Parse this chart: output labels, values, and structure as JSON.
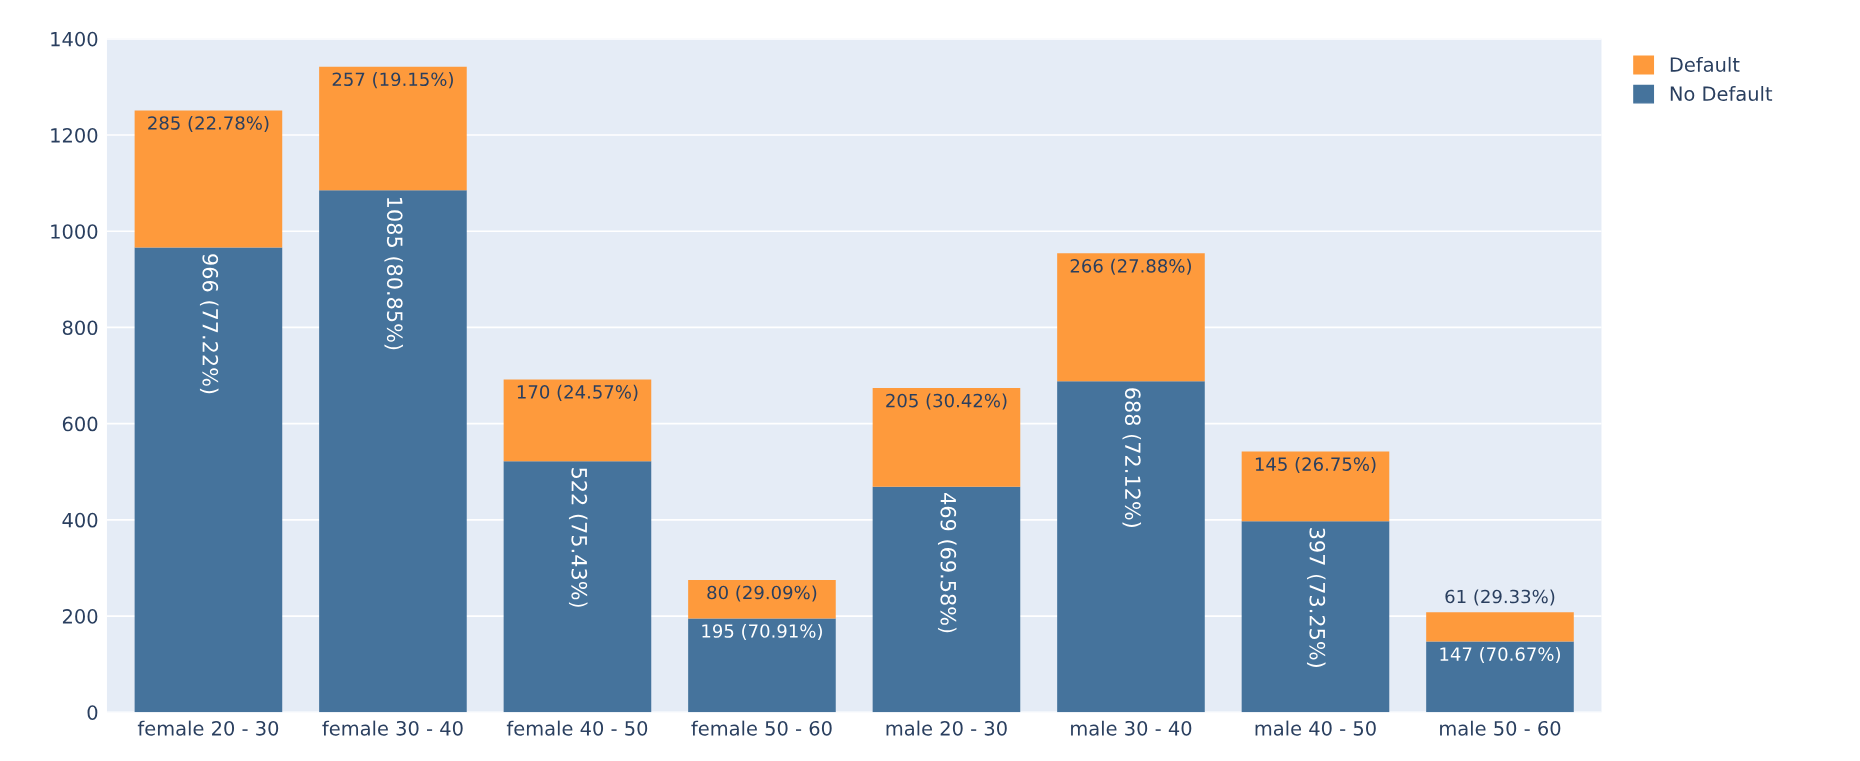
{
  "chart_data": {
    "type": "bar",
    "stacked": true,
    "categories": [
      "female 20 - 30",
      "female 30 - 40",
      "female 40 - 50",
      "female 50 - 60",
      "male 20 - 30",
      "male 30 - 40",
      "male 40 - 50",
      "male 50 - 60"
    ],
    "series": [
      {
        "name": "No Default",
        "color": "#45739c",
        "values": [
          966,
          1085,
          522,
          195,
          469,
          688,
          397,
          147
        ],
        "value_labels": [
          "966 (77.22%)",
          "1085 (80.85%)",
          "522 (75.43%)",
          "195 (70.91%)",
          "469 (69.58%)",
          "688 (72.12%)",
          "397 (73.25%)",
          "147 (70.67%)"
        ]
      },
      {
        "name": "Default",
        "color": "#fe9a3c",
        "values": [
          285,
          257,
          170,
          80,
          205,
          266,
          145,
          61
        ],
        "value_labels": [
          "285 (22.78%)",
          "257 (19.15%)",
          "170 (24.57%)",
          "80 (29.09%)",
          "205 (30.42%)",
          "266 (27.88%)",
          "145 (26.75%)",
          "61 (29.33%)"
        ]
      }
    ],
    "ylim": [
      0,
      1400
    ],
    "yticks": [
      0,
      200,
      400,
      600,
      800,
      1000,
      1200,
      1400
    ],
    "grid": "y",
    "legend": "top right"
  }
}
